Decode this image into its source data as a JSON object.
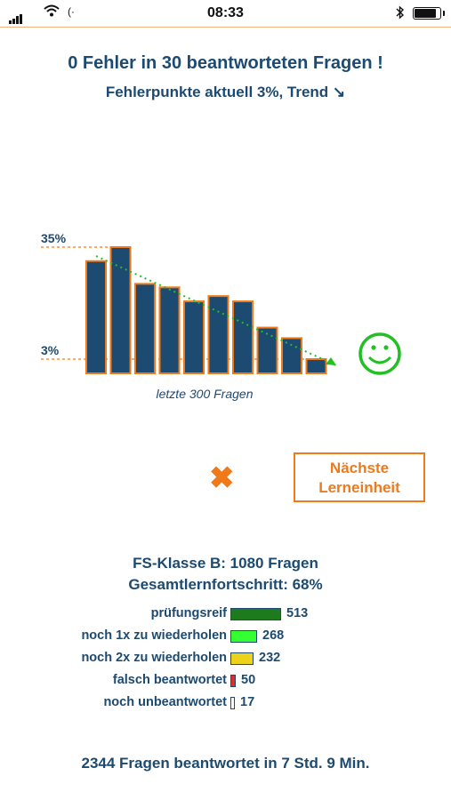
{
  "status_bar": {
    "time": "08:33"
  },
  "header": {
    "title": "0 Fehler in 30 beantworteten Fragen !",
    "subtitle": "Fehlerpunkte aktuell 3%,  Trend ↘"
  },
  "chart_data": {
    "type": "bar",
    "values": [
      31,
      35,
      24.5,
      23.5,
      19.5,
      21,
      19.5,
      12,
      9,
      3
    ],
    "ylim": [
      3,
      35
    ],
    "reference_labels": [
      "35%",
      "3%"
    ],
    "caption": "letzte 300 Fragen",
    "trend": "down",
    "colors": {
      "bar": "#1d4a70",
      "border": "#f07a1a",
      "trend": "#22c022"
    }
  },
  "actions": {
    "close_symbol": "✖",
    "next_label_line1": "Nächste",
    "next_label_line2": "Lerneinheit"
  },
  "stats": {
    "class_line": "FS-Klasse B: 1080 Fragen",
    "progress_line": "Gesamtlernfortschritt: 68%",
    "rows": [
      {
        "label": "prüfungsreif",
        "count": "513",
        "color": "#1e7a1e"
      },
      {
        "label": "noch 1x zu wiederholen",
        "count": "268",
        "color": "#33ff33"
      },
      {
        "label": "noch 2x zu wiederholen",
        "count": "232",
        "color": "#ecd21a"
      },
      {
        "label": "falsch beantwortet",
        "count": "50",
        "color": "#d83030"
      },
      {
        "label": "noch unbeantwortet",
        "count": "17",
        "color": "#ffffff"
      }
    ]
  },
  "footer": {
    "summary": "2344 Fragen beantwortet in 7 Std. 9 Min."
  }
}
